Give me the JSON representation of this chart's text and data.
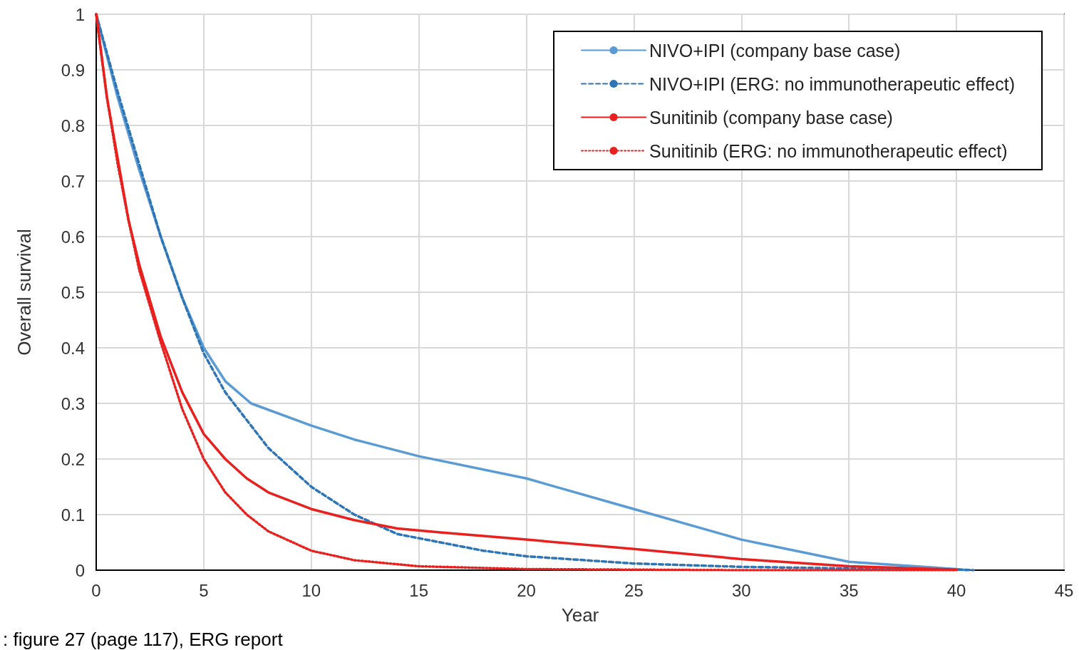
{
  "chart_data": {
    "type": "line",
    "xlabel": "Year",
    "ylabel": "Overall survival",
    "annotations": [
      ": figure 27 (page 117), ERG report"
    ],
    "xlim": [
      0,
      45
    ],
    "xticks": [
      0,
      5,
      10,
      15,
      20,
      25,
      30,
      35,
      40,
      45
    ],
    "ylim": [
      0,
      1
    ],
    "yticks": [
      0,
      0.1,
      0.2,
      0.3,
      0.4,
      0.5,
      0.6,
      0.7,
      0.8,
      0.9,
      1
    ],
    "grid": true,
    "legend": "top right",
    "marker": "none",
    "series": [
      {
        "name": "NIVO+IPI (company base case)",
        "color": "#5b9bd5",
        "line_style": "solid",
        "x": [
          0,
          1,
          2,
          3,
          4,
          5,
          6,
          7.2,
          10,
          12,
          15,
          20,
          25,
          30,
          35,
          40,
          40.5
        ],
        "values": [
          1,
          0.85,
          0.72,
          0.6,
          0.49,
          0.4,
          0.34,
          0.3,
          0.26,
          0.235,
          0.205,
          0.165,
          0.11,
          0.055,
          0.015,
          0.002,
          0
        ]
      },
      {
        "name": "NIVO+IPI (ERG: no immunotherapeutic effect)",
        "color": "#2e75b6",
        "line_style": "dashed",
        "x": [
          0,
          1,
          2,
          3,
          4,
          5,
          6,
          7,
          8,
          10,
          12,
          14,
          16,
          18,
          20,
          25,
          30,
          35,
          40,
          40.8
        ],
        "values": [
          1,
          0.86,
          0.73,
          0.6,
          0.49,
          0.39,
          0.32,
          0.27,
          0.22,
          0.15,
          0.1,
          0.065,
          0.05,
          0.035,
          0.025,
          0.012,
          0.006,
          0.003,
          0.001,
          0
        ]
      },
      {
        "name": "Sunitinib (company base case)",
        "color": "#e8201e",
        "line_style": "solid",
        "x": [
          0,
          0.5,
          1,
          1.5,
          2,
          3,
          4,
          5,
          6,
          7,
          8,
          10,
          12,
          14,
          16,
          20,
          25,
          30,
          35,
          40
        ],
        "values": [
          1,
          0.85,
          0.74,
          0.63,
          0.55,
          0.42,
          0.32,
          0.245,
          0.2,
          0.165,
          0.14,
          0.11,
          0.09,
          0.075,
          0.068,
          0.055,
          0.038,
          0.02,
          0.007,
          0.001
        ]
      },
      {
        "name": "Sunitinib (ERG: no immunotherapeutic effect)",
        "color": "#e8201e",
        "line_style": "dotted",
        "x": [
          0,
          0.5,
          1,
          1.5,
          2,
          3,
          4,
          5,
          6,
          7,
          8,
          10,
          12,
          15,
          20,
          25,
          30,
          40
        ],
        "values": [
          1,
          0.85,
          0.73,
          0.63,
          0.54,
          0.41,
          0.29,
          0.2,
          0.14,
          0.1,
          0.07,
          0.035,
          0.018,
          0.007,
          0.002,
          0.001,
          0,
          0
        ]
      }
    ]
  }
}
